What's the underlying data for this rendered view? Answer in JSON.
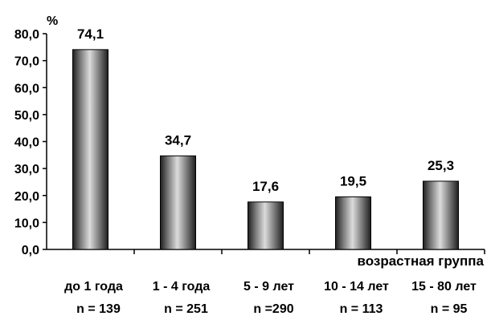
{
  "chart_data": {
    "type": "bar",
    "y_unit": "%",
    "xlabel": "возрастная группа",
    "ylim": [
      0,
      80
    ],
    "y_ticks": [
      "0,0",
      "10,0",
      "20,0",
      "30,0",
      "40,0",
      "50,0",
      "60,0",
      "70,0",
      "80,0"
    ],
    "categories": [
      "до 1 года",
      "1 - 4 года",
      "5 - 9 лет",
      "10 - 14 лет",
      "15 - 80 лет"
    ],
    "sample_sizes": [
      "n = 139",
      "n = 251",
      "n =290",
      "n = 113",
      "n = 95"
    ],
    "values": [
      74.1,
      34.7,
      17.6,
      19.5,
      25.3
    ],
    "value_labels": [
      "74,1",
      "34,7",
      "17,6",
      "19,5",
      "25,3"
    ],
    "grid": false,
    "legend": "none"
  }
}
